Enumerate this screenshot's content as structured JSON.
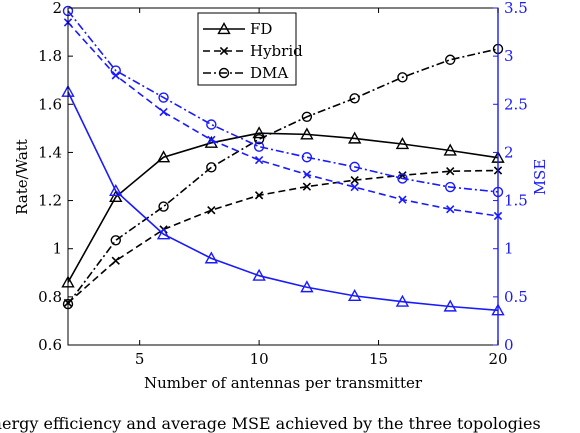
{
  "chart_data": {
    "type": "line",
    "xlabel": "Number of antennas per transmitter",
    "ylabel": "Rate/Watt",
    "y2label": "MSE",
    "xlim": [
      2,
      20
    ],
    "ylim": [
      0.6,
      2
    ],
    "y2lim": [
      0,
      3.5
    ],
    "xticks": [
      5,
      10,
      15,
      20
    ],
    "yticks": [
      "0.6",
      "0.8",
      "1",
      "1.2",
      "1.4",
      "1.6",
      "1.8",
      "2"
    ],
    "y2ticks": [
      "0",
      "0.5",
      "1",
      "1.5",
      "2",
      "2.5",
      "3",
      "3.5"
    ],
    "grid": false,
    "legend": {
      "placement": "top-center",
      "entries": [
        "FD",
        "Hybrid",
        "DMA"
      ]
    },
    "x": [
      2,
      4,
      6,
      8,
      10,
      12,
      14,
      16,
      18,
      20
    ],
    "series": [
      {
        "name": "FD",
        "axis": "left",
        "color": "#000000",
        "dash": "solid",
        "marker": "triangle",
        "values": [
          0.86,
          1.215,
          1.38,
          1.44,
          1.48,
          1.475,
          1.458,
          1.435,
          1.408,
          1.378
        ]
      },
      {
        "name": "Hybrid",
        "axis": "left",
        "color": "#000000",
        "dash": "dashed",
        "marker": "x",
        "values": [
          0.775,
          0.95,
          1.08,
          1.16,
          1.222,
          1.258,
          1.285,
          1.305,
          1.322,
          1.325
        ]
      },
      {
        "name": "DMA",
        "axis": "left",
        "color": "#000000",
        "dash": "dashdot",
        "marker": "circle",
        "values": [
          0.77,
          1.035,
          1.175,
          1.338,
          1.455,
          1.548,
          1.625,
          1.712,
          1.785,
          1.83
        ]
      },
      {
        "name": "FD",
        "axis": "right",
        "color": "#1a1aff",
        "dash": "solid",
        "marker": "triangle",
        "values": [
          2.63,
          1.6,
          1.15,
          0.9,
          0.72,
          0.6,
          0.51,
          0.45,
          0.4,
          0.36
        ]
      },
      {
        "name": "Hybrid",
        "axis": "right",
        "color": "#1a1aff",
        "dash": "dashed",
        "marker": "x",
        "values": [
          3.35,
          2.8,
          2.42,
          2.13,
          1.92,
          1.77,
          1.64,
          1.51,
          1.41,
          1.34
        ]
      },
      {
        "name": "DMA",
        "axis": "right",
        "color": "#1a1aff",
        "dash": "dashdot",
        "marker": "circle",
        "values": [
          3.47,
          2.85,
          2.57,
          2.29,
          2.06,
          1.95,
          1.85,
          1.73,
          1.64,
          1.59
        ]
      }
    ]
  },
  "caption": "Energy efficiency and average MSE achieved by the three topologies"
}
